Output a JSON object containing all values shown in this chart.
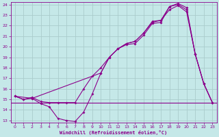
{
  "xlabel": "Windchill (Refroidissement éolien,°C)",
  "bg_color": "#c5e8e8",
  "grid_color": "#aacccc",
  "line_color": "#8b008b",
  "xlim": [
    -0.5,
    23.5
  ],
  "ylim": [
    12.8,
    24.2
  ],
  "yticks": [
    13,
    14,
    15,
    16,
    17,
    18,
    19,
    20,
    21,
    22,
    23,
    24
  ],
  "xticks": [
    0,
    1,
    2,
    3,
    4,
    5,
    6,
    7,
    8,
    9,
    10,
    11,
    12,
    13,
    14,
    15,
    16,
    17,
    18,
    19,
    20,
    21,
    22,
    23
  ],
  "hline_y": 14.7,
  "line1_x": [
    0,
    1,
    2,
    3,
    4,
    5,
    6,
    7,
    8,
    9,
    10,
    11,
    12,
    13,
    14,
    15,
    16,
    17,
    18,
    19,
    20,
    21,
    22,
    23
  ],
  "line1_y": [
    15.3,
    15.0,
    15.1,
    14.6,
    14.3,
    13.2,
    13.0,
    12.9,
    13.8,
    15.5,
    17.5,
    19.0,
    19.8,
    20.2,
    20.3,
    21.1,
    22.2,
    22.3,
    23.8,
    24.0,
    23.5,
    19.3,
    16.5,
    14.7
  ],
  "line2_x": [
    0,
    1,
    2,
    3,
    4,
    5,
    6,
    7,
    8,
    9,
    10,
    11,
    12,
    13,
    14,
    15,
    16,
    17,
    18,
    19,
    20,
    21,
    22,
    23
  ],
  "line2_y": [
    15.3,
    15.0,
    15.2,
    14.8,
    14.7,
    14.7,
    14.7,
    14.7,
    16.0,
    17.2,
    18.0,
    19.0,
    19.8,
    20.3,
    20.5,
    21.3,
    22.3,
    22.5,
    23.5,
    23.9,
    23.3,
    19.3,
    16.5,
    14.7
  ],
  "line3_x": [
    0,
    2,
    10,
    11,
    12,
    13,
    14,
    15,
    16,
    17,
    18,
    19,
    20,
    21,
    22,
    23
  ],
  "line3_y": [
    15.3,
    15.1,
    17.5,
    19.0,
    19.8,
    20.3,
    20.5,
    21.3,
    22.4,
    22.5,
    23.8,
    24.1,
    23.7,
    19.3,
    16.5,
    14.7
  ]
}
